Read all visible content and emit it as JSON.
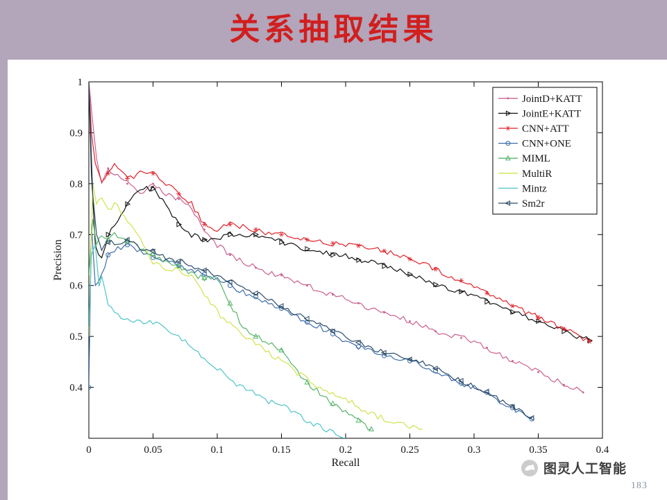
{
  "slide": {
    "title": "关系抽取结果",
    "watermark": "图灵人工智能",
    "page_number": "183"
  },
  "colors": {
    "header_bg": "#b3a5ba",
    "accent_strip": "#b3a5ba",
    "title_color": "#d01f1f",
    "axis_color": "#000000"
  },
  "chart_data": {
    "type": "line",
    "title": "",
    "xlabel": "Recall",
    "ylabel": "Precision",
    "xlim": [
      0,
      0.4
    ],
    "ylim": [
      0.3,
      1.0
    ],
    "grid": false,
    "legend_position": "top-right",
    "xticks": [
      0,
      0.05,
      0.1,
      0.15,
      0.2,
      0.25,
      0.3,
      0.35,
      0.4
    ],
    "xtick_labels": [
      "0",
      "0.05",
      "0.1",
      "0.15",
      "0.2",
      "0.25",
      "0.3",
      "0.35",
      "0.4"
    ],
    "yticks": [
      0.4,
      0.5,
      0.6,
      0.7,
      0.8,
      0.9,
      1
    ],
    "ytick_labels": [
      "0.4",
      "0.5",
      "0.6",
      "0.7",
      "0.8",
      "0.9",
      "1"
    ],
    "series": [
      {
        "name": "JointD+KATT",
        "color": "#c9608f",
        "marker": "dot",
        "points": [
          [
            0,
            1.0
          ],
          [
            0.003,
            0.92
          ],
          [
            0.006,
            0.85
          ],
          [
            0.01,
            0.8
          ],
          [
            0.015,
            0.83
          ],
          [
            0.02,
            0.82
          ],
          [
            0.03,
            0.8
          ],
          [
            0.04,
            0.78
          ],
          [
            0.05,
            0.8
          ],
          [
            0.06,
            0.78
          ],
          [
            0.07,
            0.77
          ],
          [
            0.08,
            0.75
          ],
          [
            0.09,
            0.71
          ],
          [
            0.1,
            0.68
          ],
          [
            0.11,
            0.66
          ],
          [
            0.12,
            0.645
          ],
          [
            0.13,
            0.635
          ],
          [
            0.14,
            0.625
          ],
          [
            0.15,
            0.62
          ],
          [
            0.16,
            0.61
          ],
          [
            0.17,
            0.6
          ],
          [
            0.18,
            0.59
          ],
          [
            0.19,
            0.582
          ],
          [
            0.2,
            0.575
          ],
          [
            0.21,
            0.565
          ],
          [
            0.22,
            0.555
          ],
          [
            0.23,
            0.547
          ],
          [
            0.24,
            0.538
          ],
          [
            0.25,
            0.53
          ],
          [
            0.26,
            0.52
          ],
          [
            0.27,
            0.51
          ],
          [
            0.28,
            0.503
          ],
          [
            0.29,
            0.497
          ],
          [
            0.3,
            0.49
          ],
          [
            0.31,
            0.478
          ],
          [
            0.32,
            0.465
          ],
          [
            0.33,
            0.452
          ],
          [
            0.34,
            0.442
          ],
          [
            0.35,
            0.43
          ],
          [
            0.36,
            0.418
          ],
          [
            0.37,
            0.405
          ],
          [
            0.38,
            0.395
          ],
          [
            0.385,
            0.39
          ]
        ]
      },
      {
        "name": "JointE+KATT",
        "color": "#111111",
        "marker": "triangle-right",
        "points": [
          [
            0,
            1.0
          ],
          [
            0.002,
            0.82
          ],
          [
            0.005,
            0.68
          ],
          [
            0.01,
            0.65
          ],
          [
            0.015,
            0.7
          ],
          [
            0.02,
            0.72
          ],
          [
            0.03,
            0.76
          ],
          [
            0.04,
            0.79
          ],
          [
            0.05,
            0.79
          ],
          [
            0.06,
            0.76
          ],
          [
            0.07,
            0.72
          ],
          [
            0.08,
            0.7
          ],
          [
            0.09,
            0.69
          ],
          [
            0.1,
            0.69
          ],
          [
            0.11,
            0.7
          ],
          [
            0.12,
            0.695
          ],
          [
            0.13,
            0.7
          ],
          [
            0.14,
            0.69
          ],
          [
            0.15,
            0.685
          ],
          [
            0.16,
            0.678
          ],
          [
            0.17,
            0.672
          ],
          [
            0.18,
            0.668
          ],
          [
            0.19,
            0.66
          ],
          [
            0.2,
            0.657
          ],
          [
            0.21,
            0.65
          ],
          [
            0.22,
            0.645
          ],
          [
            0.23,
            0.638
          ],
          [
            0.24,
            0.63
          ],
          [
            0.25,
            0.622
          ],
          [
            0.26,
            0.612
          ],
          [
            0.27,
            0.602
          ],
          [
            0.28,
            0.595
          ],
          [
            0.29,
            0.588
          ],
          [
            0.3,
            0.578
          ],
          [
            0.31,
            0.568
          ],
          [
            0.32,
            0.558
          ],
          [
            0.33,
            0.548
          ],
          [
            0.34,
            0.54
          ],
          [
            0.35,
            0.53
          ],
          [
            0.36,
            0.52
          ],
          [
            0.37,
            0.51
          ],
          [
            0.38,
            0.5
          ],
          [
            0.39,
            0.492
          ]
        ]
      },
      {
        "name": "CNN+ATT",
        "color": "#e02128",
        "marker": "asterisk",
        "points": [
          [
            0,
            1.0
          ],
          [
            0.002,
            0.9
          ],
          [
            0.005,
            0.84
          ],
          [
            0.01,
            0.8
          ],
          [
            0.015,
            0.82
          ],
          [
            0.02,
            0.84
          ],
          [
            0.03,
            0.81
          ],
          [
            0.04,
            0.82
          ],
          [
            0.05,
            0.82
          ],
          [
            0.06,
            0.8
          ],
          [
            0.07,
            0.78
          ],
          [
            0.08,
            0.76
          ],
          [
            0.09,
            0.72
          ],
          [
            0.1,
            0.71
          ],
          [
            0.11,
            0.72
          ],
          [
            0.12,
            0.715
          ],
          [
            0.13,
            0.71
          ],
          [
            0.14,
            0.7
          ],
          [
            0.15,
            0.7
          ],
          [
            0.16,
            0.695
          ],
          [
            0.17,
            0.69
          ],
          [
            0.18,
            0.687
          ],
          [
            0.19,
            0.683
          ],
          [
            0.2,
            0.68
          ],
          [
            0.21,
            0.678
          ],
          [
            0.22,
            0.673
          ],
          [
            0.23,
            0.668
          ],
          [
            0.24,
            0.66
          ],
          [
            0.25,
            0.652
          ],
          [
            0.26,
            0.643
          ],
          [
            0.27,
            0.632
          ],
          [
            0.28,
            0.62
          ],
          [
            0.29,
            0.61
          ],
          [
            0.3,
            0.598
          ],
          [
            0.31,
            0.585
          ],
          [
            0.32,
            0.572
          ],
          [
            0.33,
            0.56
          ],
          [
            0.34,
            0.548
          ],
          [
            0.35,
            0.538
          ],
          [
            0.36,
            0.527
          ],
          [
            0.37,
            0.515
          ],
          [
            0.38,
            0.503
          ],
          [
            0.39,
            0.49
          ]
        ]
      },
      {
        "name": "CNN+ONE",
        "color": "#3c6ca8",
        "marker": "circle",
        "points": [
          [
            0,
            0.4
          ],
          [
            0.002,
            0.72
          ],
          [
            0.005,
            0.6
          ],
          [
            0.01,
            0.62
          ],
          [
            0.015,
            0.66
          ],
          [
            0.02,
            0.67
          ],
          [
            0.03,
            0.68
          ],
          [
            0.04,
            0.665
          ],
          [
            0.05,
            0.655
          ],
          [
            0.06,
            0.648
          ],
          [
            0.07,
            0.64
          ],
          [
            0.08,
            0.632
          ],
          [
            0.09,
            0.622
          ],
          [
            0.1,
            0.615
          ],
          [
            0.11,
            0.6
          ],
          [
            0.12,
            0.588
          ],
          [
            0.13,
            0.578
          ],
          [
            0.14,
            0.565
          ],
          [
            0.15,
            0.555
          ],
          [
            0.16,
            0.54
          ],
          [
            0.17,
            0.528
          ],
          [
            0.18,
            0.518
          ],
          [
            0.19,
            0.505
          ],
          [
            0.2,
            0.49
          ],
          [
            0.21,
            0.48
          ],
          [
            0.22,
            0.47
          ],
          [
            0.23,
            0.462
          ],
          [
            0.24,
            0.458
          ],
          [
            0.25,
            0.452
          ],
          [
            0.26,
            0.443
          ],
          [
            0.27,
            0.432
          ],
          [
            0.28,
            0.42
          ],
          [
            0.29,
            0.408
          ],
          [
            0.3,
            0.4
          ],
          [
            0.31,
            0.39
          ],
          [
            0.32,
            0.372
          ],
          [
            0.33,
            0.36
          ],
          [
            0.34,
            0.345
          ],
          [
            0.345,
            0.338
          ]
        ]
      },
      {
        "name": "MIML",
        "color": "#56b46a",
        "marker": "triangle-up",
        "points": [
          [
            0,
            0.62
          ],
          [
            0.003,
            0.73
          ],
          [
            0.006,
            0.68
          ],
          [
            0.01,
            0.7
          ],
          [
            0.015,
            0.69
          ],
          [
            0.02,
            0.7
          ],
          [
            0.03,
            0.688
          ],
          [
            0.04,
            0.672
          ],
          [
            0.05,
            0.662
          ],
          [
            0.06,
            0.648
          ],
          [
            0.07,
            0.638
          ],
          [
            0.08,
            0.622
          ],
          [
            0.09,
            0.615
          ],
          [
            0.1,
            0.612
          ],
          [
            0.11,
            0.565
          ],
          [
            0.12,
            0.52
          ],
          [
            0.13,
            0.5
          ],
          [
            0.14,
            0.487
          ],
          [
            0.15,
            0.473
          ],
          [
            0.16,
            0.44
          ],
          [
            0.17,
            0.41
          ],
          [
            0.18,
            0.388
          ],
          [
            0.19,
            0.368
          ],
          [
            0.2,
            0.352
          ],
          [
            0.21,
            0.335
          ],
          [
            0.215,
            0.325
          ],
          [
            0.22,
            0.318
          ]
        ]
      },
      {
        "name": "MultiR",
        "color": "#cfe34d",
        "marker": "none",
        "points": [
          [
            0,
            0.5
          ],
          [
            0.003,
            0.8
          ],
          [
            0.006,
            0.76
          ],
          [
            0.01,
            0.77
          ],
          [
            0.015,
            0.745
          ],
          [
            0.02,
            0.76
          ],
          [
            0.03,
            0.73
          ],
          [
            0.04,
            0.69
          ],
          [
            0.05,
            0.645
          ],
          [
            0.06,
            0.635
          ],
          [
            0.07,
            0.628
          ],
          [
            0.08,
            0.62
          ],
          [
            0.09,
            0.585
          ],
          [
            0.1,
            0.548
          ],
          [
            0.11,
            0.525
          ],
          [
            0.12,
            0.5
          ],
          [
            0.13,
            0.487
          ],
          [
            0.14,
            0.468
          ],
          [
            0.15,
            0.452
          ],
          [
            0.16,
            0.432
          ],
          [
            0.17,
            0.418
          ],
          [
            0.18,
            0.4
          ],
          [
            0.19,
            0.388
          ],
          [
            0.2,
            0.378
          ],
          [
            0.21,
            0.36
          ],
          [
            0.22,
            0.348
          ],
          [
            0.23,
            0.338
          ],
          [
            0.24,
            0.33
          ],
          [
            0.25,
            0.325
          ],
          [
            0.26,
            0.318
          ]
        ]
      },
      {
        "name": "Mintz",
        "color": "#4fc3c7",
        "marker": "none",
        "points": [
          [
            0,
            0.52
          ],
          [
            0.002,
            0.66
          ],
          [
            0.005,
            0.68
          ],
          [
            0.008,
            0.6
          ],
          [
            0.01,
            0.62
          ],
          [
            0.015,
            0.56
          ],
          [
            0.02,
            0.545
          ],
          [
            0.03,
            0.535
          ],
          [
            0.04,
            0.528
          ],
          [
            0.05,
            0.527
          ],
          [
            0.06,
            0.515
          ],
          [
            0.07,
            0.5
          ],
          [
            0.08,
            0.478
          ],
          [
            0.09,
            0.455
          ],
          [
            0.1,
            0.438
          ],
          [
            0.11,
            0.415
          ],
          [
            0.12,
            0.4
          ],
          [
            0.13,
            0.388
          ],
          [
            0.14,
            0.372
          ],
          [
            0.15,
            0.364
          ],
          [
            0.16,
            0.35
          ],
          [
            0.17,
            0.335
          ],
          [
            0.18,
            0.322
          ],
          [
            0.19,
            0.31
          ],
          [
            0.2,
            0.3
          ]
        ]
      },
      {
        "name": "Sm2r",
        "color": "#2c4a66",
        "marker": "triangle-left",
        "points": [
          [
            0,
            1.0
          ],
          [
            0.003,
            0.78
          ],
          [
            0.006,
            0.7
          ],
          [
            0.01,
            0.67
          ],
          [
            0.015,
            0.685
          ],
          [
            0.02,
            0.682
          ],
          [
            0.03,
            0.69
          ],
          [
            0.04,
            0.675
          ],
          [
            0.05,
            0.667
          ],
          [
            0.06,
            0.656
          ],
          [
            0.07,
            0.648
          ],
          [
            0.08,
            0.64
          ],
          [
            0.09,
            0.63
          ],
          [
            0.1,
            0.62
          ],
          [
            0.11,
            0.607
          ],
          [
            0.12,
            0.595
          ],
          [
            0.13,
            0.585
          ],
          [
            0.14,
            0.572
          ],
          [
            0.15,
            0.56
          ],
          [
            0.16,
            0.548
          ],
          [
            0.17,
            0.535
          ],
          [
            0.18,
            0.522
          ],
          [
            0.19,
            0.51
          ],
          [
            0.2,
            0.498
          ],
          [
            0.21,
            0.488
          ],
          [
            0.22,
            0.478
          ],
          [
            0.23,
            0.468
          ],
          [
            0.24,
            0.462
          ],
          [
            0.25,
            0.455
          ],
          [
            0.26,
            0.447
          ],
          [
            0.27,
            0.437
          ],
          [
            0.28,
            0.425
          ],
          [
            0.29,
            0.413
          ],
          [
            0.3,
            0.402
          ],
          [
            0.31,
            0.392
          ],
          [
            0.32,
            0.375
          ],
          [
            0.33,
            0.362
          ],
          [
            0.34,
            0.348
          ],
          [
            0.345,
            0.34
          ]
        ]
      }
    ]
  }
}
